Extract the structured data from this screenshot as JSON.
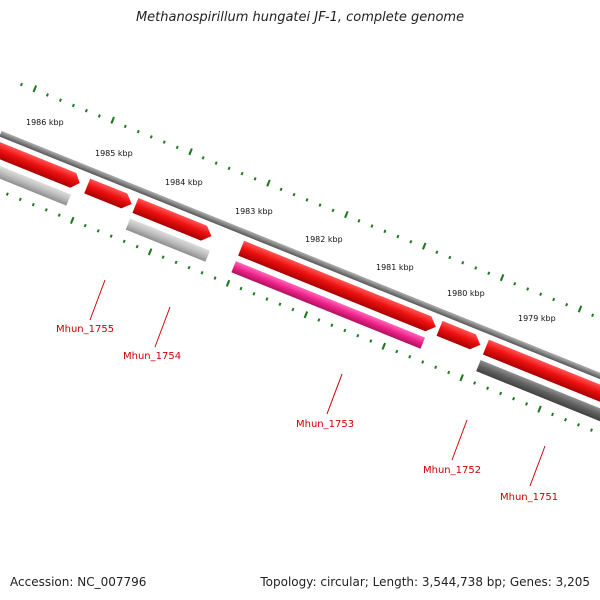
{
  "title": "Methanospirillum hungatei JF-1, complete genome",
  "footer": {
    "accession": "Accession: NC_007796",
    "summary": "Topology: circular; Length: 3,544,738 bp; Genes: 3,205"
  },
  "colors": {
    "backbone": "#8a8a8a",
    "tick": "#1f7a1f",
    "cds": "#ee1111",
    "label": "#cc0000",
    "gray_gene": "#b8b8b8",
    "pink_gene": "#ee2288",
    "dark_gene": "#606060"
  },
  "scale_labels": [
    "1986 kbp",
    "1985 kbp",
    "1984 kbp",
    "1983 kbp",
    "1982 kbp",
    "1981 kbp",
    "1980 kbp",
    "1979 kbp"
  ],
  "genes": [
    {
      "label": "Mhun_1755",
      "color": "gray"
    },
    {
      "label": "Mhun_1754",
      "color": "gray"
    },
    {
      "label": "Mhun_1753",
      "color": "pink"
    },
    {
      "label": "Mhun_1752",
      "color": "red"
    },
    {
      "label": "Mhun_1751",
      "color": "dark"
    }
  ]
}
